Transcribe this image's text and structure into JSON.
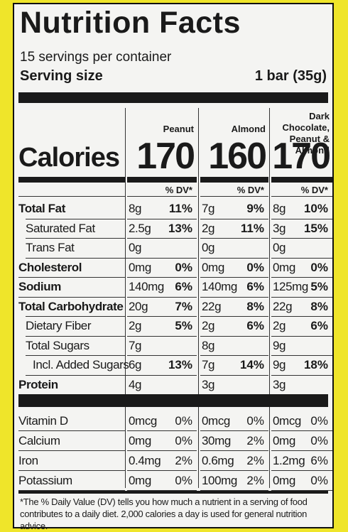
{
  "title": "Nutrition Facts",
  "servings": "15 servings per container",
  "serving_size_label": "Serving size",
  "serving_size": "1 bar (35g)",
  "calories_label": "Calories",
  "dv_header": "% DV*",
  "products": [
    {
      "name": "Peanut",
      "calories": "170"
    },
    {
      "name": "Almond",
      "calories": "160"
    },
    {
      "name": "Dark Chocolate, Peanut & Almond",
      "calories": "170"
    }
  ],
  "nutrients": [
    {
      "label": "Total Fat",
      "bold": true,
      "level": 0,
      "values": [
        [
          "8g",
          "11%"
        ],
        [
          "7g",
          "9%"
        ],
        [
          "8g",
          "10%"
        ]
      ]
    },
    {
      "label": "Saturated Fat",
      "bold": false,
      "level": 1,
      "values": [
        [
          "2.5g",
          "13%"
        ],
        [
          "2g",
          "11%"
        ],
        [
          "3g",
          "15%"
        ]
      ]
    },
    {
      "label": "Trans Fat",
      "bold": false,
      "level": 1,
      "values": [
        [
          "0g"
        ],
        [
          "0g"
        ],
        [
          "0g"
        ]
      ]
    },
    {
      "label": "Cholesterol",
      "bold": true,
      "level": 0,
      "values": [
        [
          "0mg",
          "0%"
        ],
        [
          "0mg",
          "0%"
        ],
        [
          "0mg",
          "0%"
        ]
      ]
    },
    {
      "label": "Sodium",
      "bold": true,
      "level": 0,
      "values": [
        [
          "140mg",
          "6%"
        ],
        [
          "140mg",
          "6%"
        ],
        [
          "125mg",
          "5%"
        ]
      ]
    },
    {
      "label": "Total Carbohydrate",
      "bold": true,
      "level": 0,
      "values": [
        [
          "20g",
          "7%"
        ],
        [
          "22g",
          "8%"
        ],
        [
          "22g",
          "8%"
        ]
      ]
    },
    {
      "label": "Dietary Fiber",
      "bold": false,
      "level": 1,
      "values": [
        [
          "2g",
          "5%"
        ],
        [
          "2g",
          "6%"
        ],
        [
          "2g",
          "6%"
        ]
      ]
    },
    {
      "label": "Total Sugars",
      "bold": false,
      "level": 1,
      "values": [
        [
          "7g"
        ],
        [
          "8g"
        ],
        [
          "9g"
        ]
      ]
    },
    {
      "label": "Incl. Added Sugars",
      "bold": false,
      "level": 2,
      "values": [
        [
          "6g",
          "13%"
        ],
        [
          "7g",
          "14%"
        ],
        [
          "9g",
          "18%"
        ]
      ]
    },
    {
      "label": "Protein",
      "bold": true,
      "level": 0,
      "values": [
        [
          "4g"
        ],
        [
          "3g"
        ],
        [
          "3g"
        ]
      ]
    }
  ],
  "vitamins": [
    {
      "label": "Vitamin D",
      "values": [
        [
          "0mcg",
          "0%"
        ],
        [
          "0mcg",
          "0%"
        ],
        [
          "0mcg",
          "0%"
        ]
      ]
    },
    {
      "label": "Calcium",
      "values": [
        [
          "0mg",
          "0%"
        ],
        [
          "30mg",
          "2%"
        ],
        [
          "0mg",
          "0%"
        ]
      ]
    },
    {
      "label": "Iron",
      "values": [
        [
          "0.4mg",
          "2%"
        ],
        [
          "0.6mg",
          "2%"
        ],
        [
          "1.2mg",
          "6%"
        ]
      ]
    },
    {
      "label": "Potassium",
      "values": [
        [
          "0mg",
          "0%"
        ],
        [
          "100mg",
          "2%"
        ],
        [
          "0mg",
          "0%"
        ]
      ]
    }
  ],
  "footnote": "*The % Daily Value (DV) tells you how much a nutrient in a serving of food contributes to a daily diet. 2,000 calories a day is used for general nutrition advice."
}
